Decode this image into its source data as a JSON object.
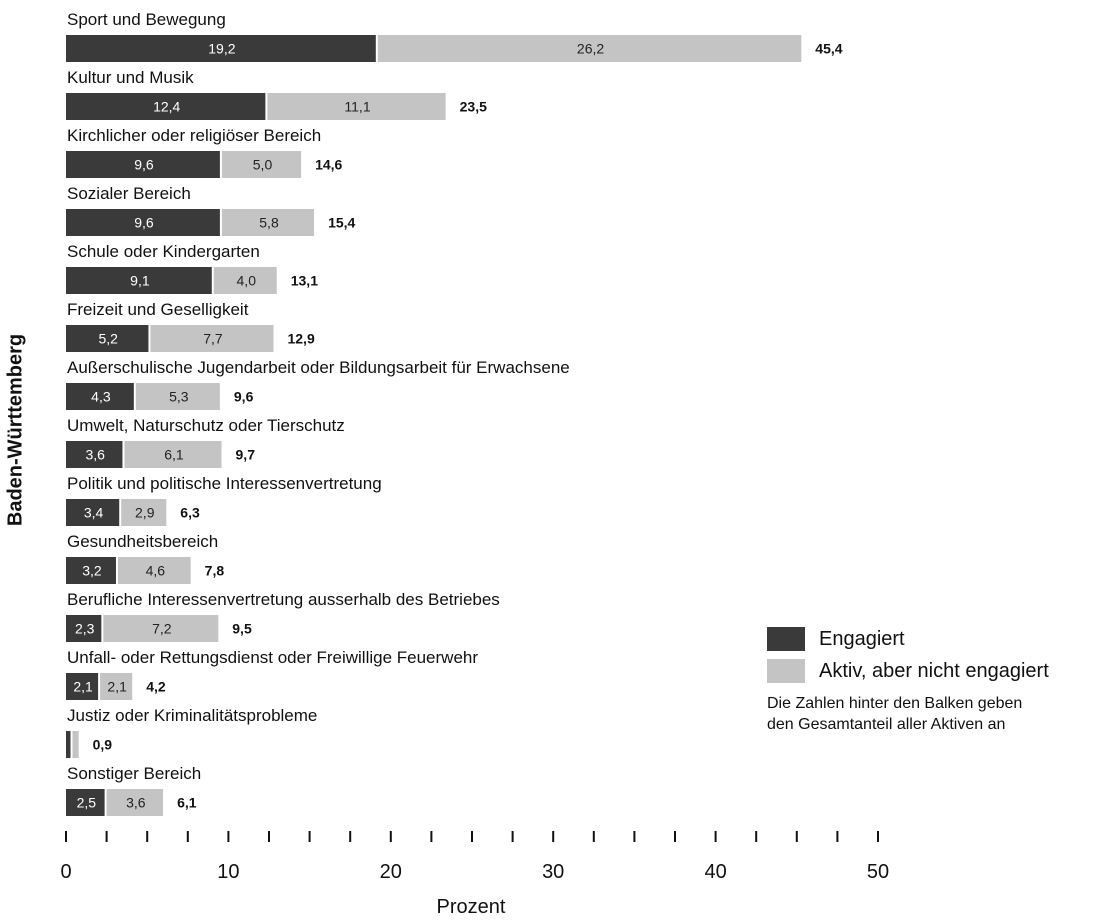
{
  "chart_data": {
    "type": "bar",
    "orientation": "horizontal",
    "stacked": true,
    "ylabel": "Baden-Württemberg",
    "xlabel": "Prozent",
    "xlim": [
      0,
      50
    ],
    "xticks": [
      "0",
      "10",
      "20",
      "30",
      "40",
      "50"
    ],
    "grid": false,
    "legend_position": "right",
    "categories": [
      "Sport und Bewegung",
      "Kultur und Musik",
      "Kirchlicher oder religiöser Bereich",
      "Sozialer Bereich",
      "Schule oder Kindergarten",
      "Freizeit und Geselligkeit",
      "Außerschulische Jugendarbeit oder Bildungsarbeit für Erwachsene",
      "Umwelt, Naturschutz oder Tierschutz",
      "Politik und politische Interessenvertretung",
      "Gesundheitsbereich",
      "Berufliche Interessenvertretung ausserhalb des Betriebes",
      "Unfall- oder Rettungsdienst oder Freiwillige Feuerwehr",
      "Justiz oder Kriminalitätsprobleme",
      "Sonstiger Bereich"
    ],
    "series": [
      {
        "name": "Engagiert",
        "color": "#3a3a3a",
        "values": [
          19.2,
          12.4,
          9.6,
          9.6,
          9.1,
          5.2,
          4.3,
          3.6,
          3.4,
          3.2,
          2.3,
          2.1,
          0.4,
          2.5
        ],
        "labels": [
          "19,2",
          "12,4",
          "9,6",
          "9,6",
          "9,1",
          "5,2",
          "4,3",
          "3,6",
          "3,4",
          "3,2",
          "2,3",
          "2,1",
          "",
          "2,5"
        ]
      },
      {
        "name": "Aktiv, aber nicht engagiert",
        "color": "#c4c4c4",
        "values": [
          26.2,
          11.1,
          5.0,
          5.8,
          4.0,
          7.7,
          5.3,
          6.1,
          2.9,
          4.6,
          7.2,
          2.1,
          0.5,
          3.6
        ],
        "labels": [
          "26,2",
          "11,1",
          "5,0",
          "5,8",
          "4,0",
          "7,7",
          "5,3",
          "6,1",
          "2,9",
          "4,6",
          "7,2",
          "2,1",
          "",
          "3,6"
        ]
      }
    ],
    "totals": [
      45.4,
      23.5,
      14.6,
      15.4,
      13.1,
      12.9,
      9.6,
      9.7,
      6.3,
      7.8,
      9.5,
      4.2,
      0.9,
      6.1
    ],
    "total_labels": [
      "45,4",
      "23,5",
      "14,6",
      "15,4",
      "13,1",
      "12,9",
      "9,6",
      "9,7",
      "6,3",
      "7,8",
      "9,5",
      "4,2",
      "0,9",
      "6,1"
    ],
    "note_lines": [
      "Die Zahlen hinter den Balken geben",
      "den Gesamtanteil aller Aktiven an"
    ]
  }
}
